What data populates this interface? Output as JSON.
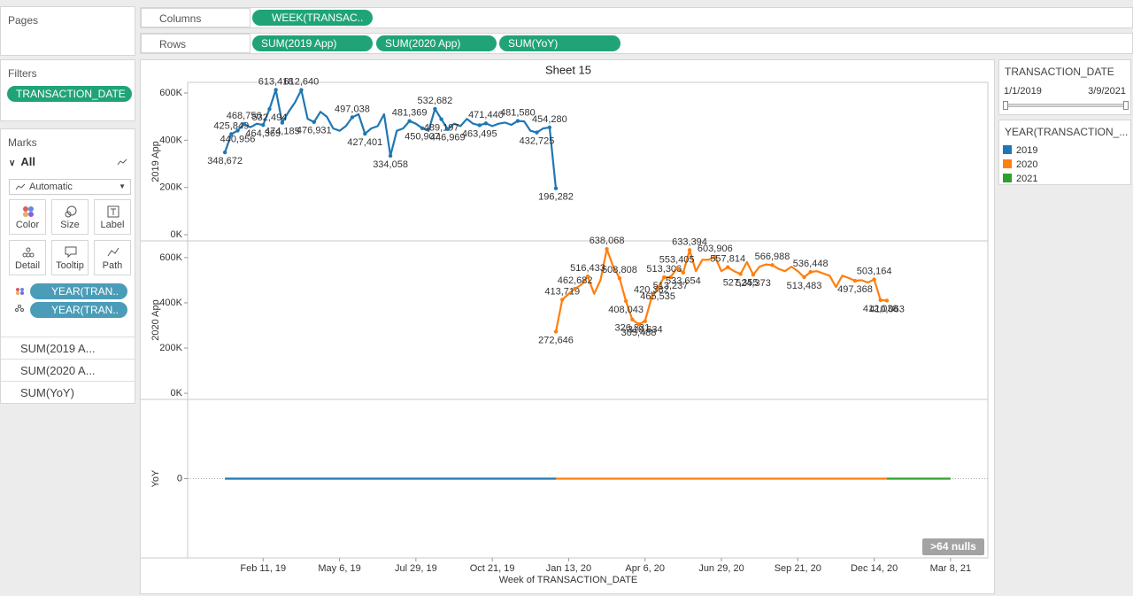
{
  "pages_panel": {
    "title": "Pages"
  },
  "filters_panel": {
    "title": "Filters",
    "pills": [
      "TRANSACTION_DATE"
    ]
  },
  "marks_panel": {
    "title": "Marks",
    "card": "All",
    "mark_type": "Automatic",
    "buttons": [
      "Color",
      "Size",
      "Label",
      "Detail",
      "Tooltip",
      "Path"
    ],
    "pills": [
      "YEAR(TRAN..",
      "YEAR(TRAN.."
    ],
    "measures": [
      "SUM(2019 A...",
      "SUM(2020 A...",
      "SUM(YoY)"
    ]
  },
  "columns_shelf": {
    "label": "Columns",
    "pills": [
      "WEEK(TRANSAC.."
    ]
  },
  "rows_shelf": {
    "label": "Rows",
    "pills": [
      "SUM(2019 App)",
      "SUM(2020 App)",
      "SUM(YoY)"
    ]
  },
  "date_filter": {
    "title": "TRANSACTION_DATE",
    "start": "1/1/2019",
    "end": "3/9/2021"
  },
  "legend": {
    "title": "YEAR(TRANSACTION_..."
  },
  "chart_data": {
    "type": "line",
    "title": "Sheet 15",
    "xlabel": "Week of TRANSACTION_DATE",
    "annotation": ">64 nulls",
    "xlim": [
      "2018-11-20",
      "2021-04-18"
    ],
    "xticks": [
      {
        "value": "2019-02-11",
        "label": "Feb 11, 19"
      },
      {
        "value": "2019-05-06",
        "label": "May 6, 19"
      },
      {
        "value": "2019-07-29",
        "label": "Jul 29, 19"
      },
      {
        "value": "2019-10-21",
        "label": "Oct 21, 19"
      },
      {
        "value": "2020-01-13",
        "label": "Jan 13, 20"
      },
      {
        "value": "2020-04-06",
        "label": "Apr 6, 20"
      },
      {
        "value": "2020-06-29",
        "label": "Jun 29, 20"
      },
      {
        "value": "2020-09-21",
        "label": "Sep 21, 20"
      },
      {
        "value": "2020-12-14",
        "label": "Dec 14, 20"
      },
      {
        "value": "2021-03-08",
        "label": "Mar 8, 21"
      }
    ],
    "panes": [
      {
        "ylabel": "2019 App",
        "ylim": [
          -26000,
          645000
        ],
        "grid": false,
        "yticks": [
          {
            "value": 0,
            "label": "0K"
          },
          {
            "value": 200000,
            "label": "200K"
          },
          {
            "value": 400000,
            "label": "400K"
          },
          {
            "value": 600000,
            "label": "600K"
          }
        ],
        "series": [
          {
            "color": "#1f77b4",
            "x": [
              "2018-12-31",
              "2019-01-07",
              "2019-01-14",
              "2019-01-21",
              "2019-01-28",
              "2019-02-04",
              "2019-02-11",
              "2019-02-18",
              "2019-02-25",
              "2019-03-04",
              "2019-03-11",
              "2019-03-18",
              "2019-03-25",
              "2019-04-01",
              "2019-04-08",
              "2019-04-15",
              "2019-04-22",
              "2019-04-29",
              "2019-05-06",
              "2019-05-13",
              "2019-05-20",
              "2019-05-27",
              "2019-06-03",
              "2019-06-10",
              "2019-06-17",
              "2019-06-24",
              "2019-07-01",
              "2019-07-08",
              "2019-07-15",
              "2019-07-22",
              "2019-07-29",
              "2019-08-05",
              "2019-08-12",
              "2019-08-19",
              "2019-08-26",
              "2019-09-02",
              "2019-09-09",
              "2019-09-16",
              "2019-09-23",
              "2019-09-30",
              "2019-10-07",
              "2019-10-14",
              "2019-10-21",
              "2019-10-28",
              "2019-11-04",
              "2019-11-11",
              "2019-11-18",
              "2019-11-25",
              "2019-12-02",
              "2019-12-09",
              "2019-12-16",
              "2019-12-23",
              "2019-12-30"
            ],
            "values": [
              348672,
              425849,
              440956,
              468756,
              455000,
              470000,
              464369,
              532494,
              613418,
              474185,
              520000,
              560000,
              612640,
              490000,
              476931,
              520000,
              500000,
              450000,
              440000,
              460000,
              497038,
              510000,
              427401,
              450000,
              460000,
              510000,
              334058,
              440000,
              450000,
              481369,
              470000,
              450907,
              440000,
              532682,
              489197,
              446969,
              470000,
              460000,
              490000,
              470000,
              463495,
              471440,
              460000,
              470000,
              475000,
              465000,
              481580,
              480000,
              440000,
              432725,
              450000,
              454280,
              196282
            ],
            "value_labels": [
              "348,672",
              "425,849",
              "440,956",
              "468,756",
              null,
              null,
              "464,369",
              "532,494",
              "613,418",
              "474,185",
              null,
              null,
              "612,640",
              null,
              "476,931",
              null,
              null,
              null,
              null,
              null,
              "497,038",
              null,
              "427,401",
              null,
              null,
              null,
              "334,058",
              null,
              null,
              "481,369",
              null,
              "450,907",
              null,
              "532,682",
              "489,197",
              "446,969",
              null,
              null,
              null,
              null,
              "463,495",
              "471,440",
              null,
              null,
              null,
              null,
              "481,580",
              null,
              null,
              "432,725",
              null,
              "454,280",
              "196,282"
            ]
          }
        ]
      },
      {
        "ylabel": "2020 App",
        "ylim": [
          -27000,
          674000
        ],
        "grid": false,
        "yticks": [
          {
            "value": 0,
            "label": "0K"
          },
          {
            "value": 200000,
            "label": "200K"
          },
          {
            "value": 400000,
            "label": "400K"
          },
          {
            "value": 600000,
            "label": "600K"
          }
        ],
        "series": [
          {
            "color": "#ff7f0e",
            "x": [
              "2019-12-30",
              "2020-01-06",
              "2020-01-13",
              "2020-01-20",
              "2020-01-27",
              "2020-02-03",
              "2020-02-10",
              "2020-02-17",
              "2020-02-24",
              "2020-03-02",
              "2020-03-09",
              "2020-03-16",
              "2020-03-23",
              "2020-03-30",
              "2020-04-06",
              "2020-04-13",
              "2020-04-20",
              "2020-04-27",
              "2020-05-04",
              "2020-05-11",
              "2020-05-18",
              "2020-05-25",
              "2020-06-01",
              "2020-06-08",
              "2020-06-15",
              "2020-06-22",
              "2020-06-29",
              "2020-07-06",
              "2020-07-13",
              "2020-07-20",
              "2020-07-27",
              "2020-08-03",
              "2020-08-10",
              "2020-08-17",
              "2020-08-24",
              "2020-08-31",
              "2020-09-07",
              "2020-09-14",
              "2020-09-21",
              "2020-09-28",
              "2020-10-05",
              "2020-10-12",
              "2020-10-19",
              "2020-10-26",
              "2020-11-02",
              "2020-11-09",
              "2020-11-16",
              "2020-11-23",
              "2020-11-30",
              "2020-12-07",
              "2020-12-14",
              "2020-12-21",
              "2020-12-28"
            ],
            "values": [
              272646,
              413719,
              440000,
              462682,
              480000,
              516433,
              440000,
              500000,
              638068,
              560000,
              508808,
              408043,
              326331,
              305488,
              318634,
              420382,
              465535,
              513306,
              513237,
              553405,
              533654,
              633394,
              540000,
              590000,
              590000,
              603906,
              540000,
              557814,
              540000,
              527355,
              580000,
              524373,
              560000,
              570000,
              566988,
              550000,
              540000,
              560000,
              540000,
              513483,
              536448,
              540000,
              530000,
              520000,
              470000,
              520000,
              510000,
              497368,
              500000,
              490000,
              503164,
              412038,
              410063
            ],
            "value_labels": [
              "272,646",
              "413,719",
              null,
              "462,682",
              null,
              "516,433",
              null,
              null,
              "638,068",
              null,
              "508,808",
              "408,043",
              "326,331",
              "305,488",
              "318,634",
              "420,382",
              "465,535",
              "513,306",
              "513,237",
              "553,405",
              "533,654",
              "633,394",
              null,
              null,
              null,
              "603,906",
              null,
              "557,814",
              null,
              "527,355",
              null,
              "524,373",
              null,
              null,
              "566,988",
              null,
              null,
              null,
              null,
              "513,483",
              "536,448",
              null,
              null,
              null,
              null,
              null,
              null,
              "497,368",
              null,
              null,
              "503,164",
              "412,038",
              "410,063"
            ]
          }
        ]
      },
      {
        "ylabel": "YoY",
        "ylim": [
          -1,
          1
        ],
        "grid": true,
        "yticks": [
          0
        ],
        "series": [
          {
            "name": "2019",
            "color": "#1f77b4",
            "x": [
              "2018-12-31",
              "2019-12-30"
            ],
            "values": [
              0,
              0
            ]
          },
          {
            "name": "2020",
            "color": "#ff7f0e",
            "x": [
              "2019-12-30",
              "2020-12-28"
            ],
            "values": [
              0,
              0
            ]
          },
          {
            "name": "2021",
            "color": "#2ca02c",
            "x": [
              "2020-12-28",
              "2021-03-08"
            ],
            "values": [
              0,
              0
            ]
          }
        ]
      }
    ]
  }
}
